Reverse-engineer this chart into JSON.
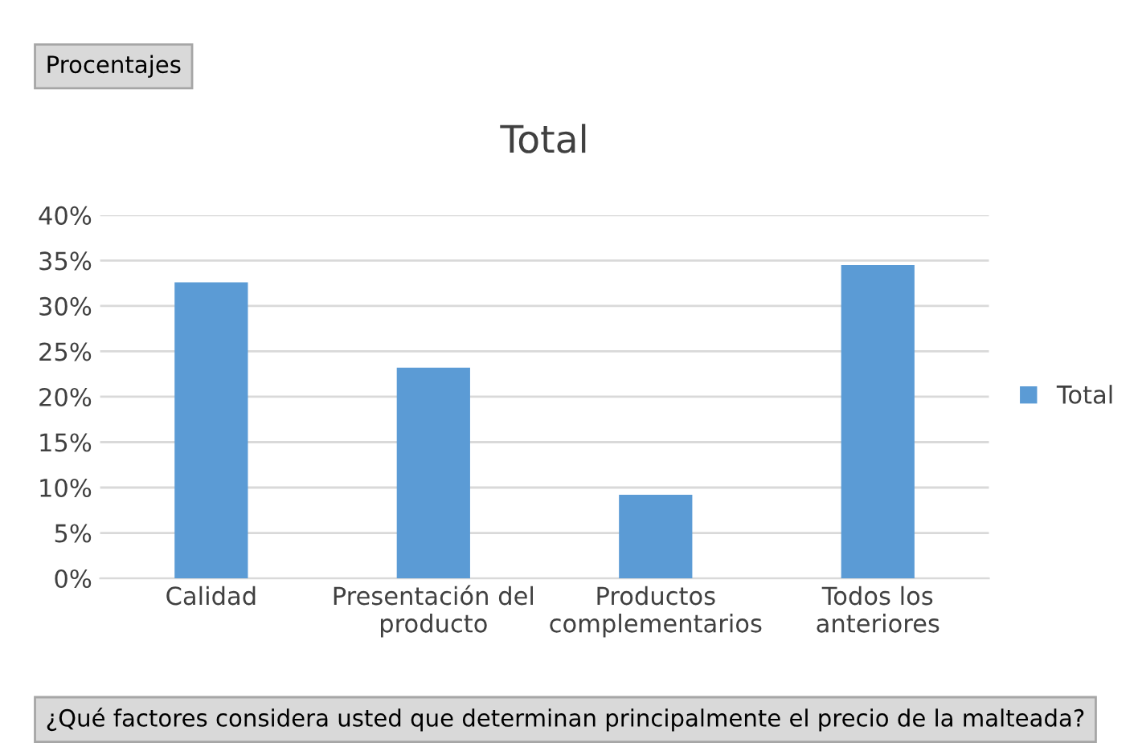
{
  "chart_data": {
    "type": "bar",
    "title": "Total",
    "categories": [
      "Calidad",
      "Presentación del\nproducto",
      "Productos\ncomplementarios",
      "Todos los\nanteriores"
    ],
    "series": [
      {
        "name": "Total",
        "color": "#5b9bd5",
        "values": [
          32.6,
          23.2,
          9.2,
          34.5
        ]
      }
    ],
    "ylim": [
      0,
      40
    ],
    "yticks": [
      {
        "value": 0,
        "label": "0%"
      },
      {
        "value": 5,
        "label": "5%"
      },
      {
        "value": 10,
        "label": "10%"
      },
      {
        "value": 15,
        "label": "15%"
      },
      {
        "value": 20,
        "label": "20%"
      },
      {
        "value": 25,
        "label": "25%"
      },
      {
        "value": 30,
        "label": "30%"
      },
      {
        "value": 35,
        "label": "35%"
      },
      {
        "value": 40,
        "label": "40%"
      }
    ],
    "grid": "y",
    "legend": "right",
    "annotations": [
      "Procentajes",
      "¿Qué factores considera usted que determinan principalmente el precio de la malteada?"
    ]
  }
}
